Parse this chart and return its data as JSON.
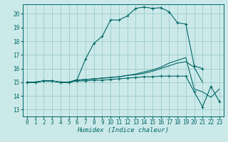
{
  "xlabel": "Humidex (Indice chaleur)",
  "bg_color": "#cce9e9",
  "grid_color": "#99cccc",
  "line_color": "#006666",
  "xlim": [
    -0.5,
    23.5
  ],
  "ylim": [
    12.5,
    20.7
  ],
  "yticks": [
    13,
    14,
    15,
    16,
    17,
    18,
    19,
    20
  ],
  "xticks": [
    0,
    1,
    2,
    3,
    4,
    5,
    6,
    7,
    8,
    9,
    10,
    11,
    12,
    13,
    14,
    15,
    16,
    17,
    18,
    19,
    20,
    21,
    22,
    23
  ],
  "lines": [
    {
      "x": [
        0,
        1,
        2,
        3,
        4,
        5,
        6,
        7,
        8,
        9,
        10,
        11,
        12,
        13,
        14,
        15,
        16,
        17,
        18,
        19,
        20,
        21,
        22,
        23
      ],
      "y": [
        15.0,
        15.0,
        15.1,
        15.1,
        15.0,
        15.0,
        15.2,
        16.7,
        17.85,
        18.35,
        19.55,
        19.55,
        19.85,
        20.4,
        20.5,
        20.4,
        20.45,
        20.15,
        19.35,
        19.25,
        16.2,
        16.0,
        null,
        null
      ],
      "marker": true
    },
    {
      "x": [
        0,
        1,
        2,
        3,
        4,
        5,
        6,
        7,
        8,
        9,
        10,
        11,
        12,
        13,
        14,
        15,
        16,
        17,
        18,
        19,
        20,
        21
      ],
      "y": [
        15.0,
        15.0,
        15.1,
        15.1,
        15.0,
        15.0,
        15.15,
        15.2,
        15.25,
        15.3,
        15.35,
        15.4,
        15.5,
        15.55,
        15.65,
        15.8,
        16.0,
        16.2,
        16.4,
        16.5,
        16.1,
        15.0
      ],
      "marker": false
    },
    {
      "x": [
        0,
        1,
        2,
        3,
        4,
        5,
        6,
        7,
        8,
        9,
        10,
        11,
        12,
        13,
        14,
        15,
        16,
        17,
        18,
        19,
        20,
        21,
        22,
        23
      ],
      "y": [
        15.0,
        15.0,
        15.1,
        15.1,
        15.0,
        15.0,
        15.15,
        15.2,
        15.25,
        15.3,
        15.35,
        15.4,
        15.5,
        15.6,
        15.75,
        15.9,
        16.1,
        16.4,
        16.6,
        16.8,
        14.5,
        14.3,
        13.9,
        14.5
      ],
      "marker": false
    },
    {
      "x": [
        0,
        1,
        2,
        3,
        4,
        5,
        6,
        7,
        8,
        9,
        10,
        11,
        12,
        13,
        14,
        15,
        16,
        17,
        18,
        19,
        20,
        21,
        22,
        23
      ],
      "y": [
        15.0,
        15.0,
        15.1,
        15.1,
        15.0,
        15.0,
        15.1,
        15.1,
        15.15,
        15.15,
        15.2,
        15.25,
        15.3,
        15.35,
        15.4,
        15.4,
        15.45,
        15.45,
        15.45,
        15.45,
        14.3,
        13.2,
        14.7,
        13.6
      ],
      "marker": true
    }
  ]
}
